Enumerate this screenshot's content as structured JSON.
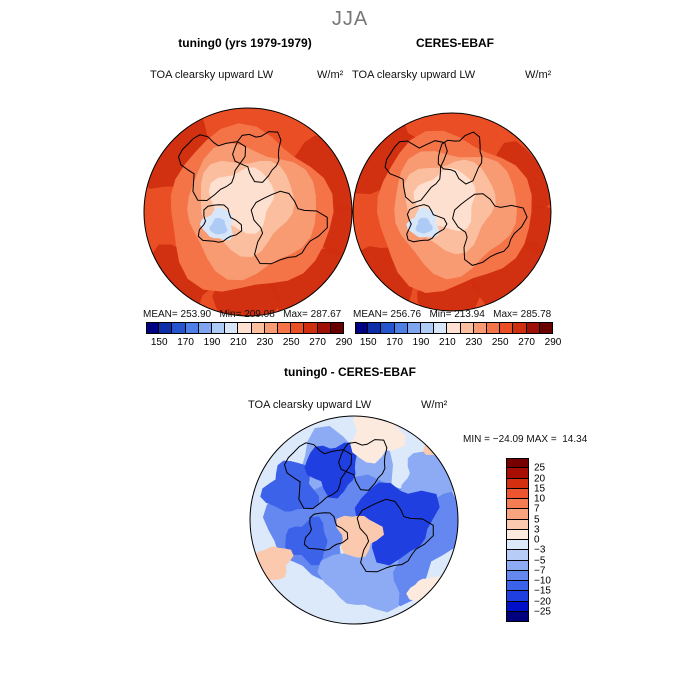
{
  "figure": {
    "season": "JJA"
  },
  "colors": {
    "abs_palette": [
      "#000083",
      "#0d2ea8",
      "#2455cf",
      "#4d7fe6",
      "#7ea6f0",
      "#aecbf6",
      "#d8e6fa",
      "#fde0d0",
      "#fbbfa0",
      "#f89a72",
      "#f47447",
      "#ea4e24",
      "#cf2f10",
      "#a01006",
      "#680000"
    ],
    "diff_palette": [
      "#00007f",
      "#0010c8",
      "#1f3fe0",
      "#3c62ea",
      "#6488f0",
      "#8cabf4",
      "#b7cdf8",
      "#dce9fb",
      "#fdeadf",
      "#fbc9ae",
      "#f8a47f",
      "#f47d53",
      "#ec5530",
      "#d4300f",
      "#a80d04",
      "#760000"
    ]
  },
  "chart_data": [
    {
      "type": "heatmap",
      "title": "tuning0 (yrs 1979-1979)",
      "variable_label": "TOA clearsky upward LW",
      "units": "W/m²",
      "stats": {
        "mean": "253.90",
        "min": "209.08",
        "max": "287.67"
      },
      "stats_labels": {
        "mean": "MEAN=",
        "min": "Min=",
        "max": "Max="
      },
      "colorbar_ticks": [
        "150",
        "170",
        "190",
        "210",
        "230",
        "250",
        "270",
        "290"
      ]
    },
    {
      "type": "heatmap",
      "title": "CERES-EBAF",
      "variable_label": "TOA clearsky upward LW",
      "units": "W/m²",
      "stats": {
        "mean": "256.76",
        "min": "213.94",
        "max": "285.78"
      },
      "stats_labels": {
        "mean": "MEAN=",
        "min": "Min=",
        "max": "Max="
      },
      "colorbar_ticks": [
        "150",
        "170",
        "190",
        "210",
        "230",
        "250",
        "270",
        "290"
      ]
    },
    {
      "type": "heatmap",
      "title": "tuning0 - CERES-EBAF",
      "variable_label": "TOA clearsky upward LW",
      "units": "W/m²",
      "stats": {
        "min": "−24.09",
        "max": "14.34"
      },
      "stats_labels": {
        "min": "MIN =",
        "max": "MAX ="
      },
      "colorbar_ticks": [
        "25",
        "20",
        "15",
        "10",
        "7",
        "5",
        "3",
        "0",
        "−3",
        "−5",
        "−7",
        "−10",
        "−15",
        "−20",
        "−25"
      ]
    }
  ]
}
